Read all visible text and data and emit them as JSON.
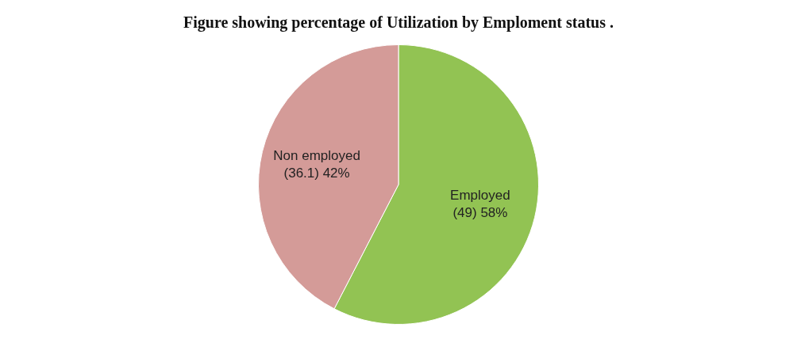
{
  "chart_data": {
    "type": "pie",
    "title": "Figure showing percentage of Utilization by Emploment status .",
    "categories": [
      "Employed",
      "Non employed"
    ],
    "values": [
      49,
      36.1
    ],
    "value_labels": [
      "(49) 58%",
      "(36.1) 42%"
    ],
    "colors": [
      "#92c353",
      "#d49b98"
    ],
    "legend": false
  }
}
